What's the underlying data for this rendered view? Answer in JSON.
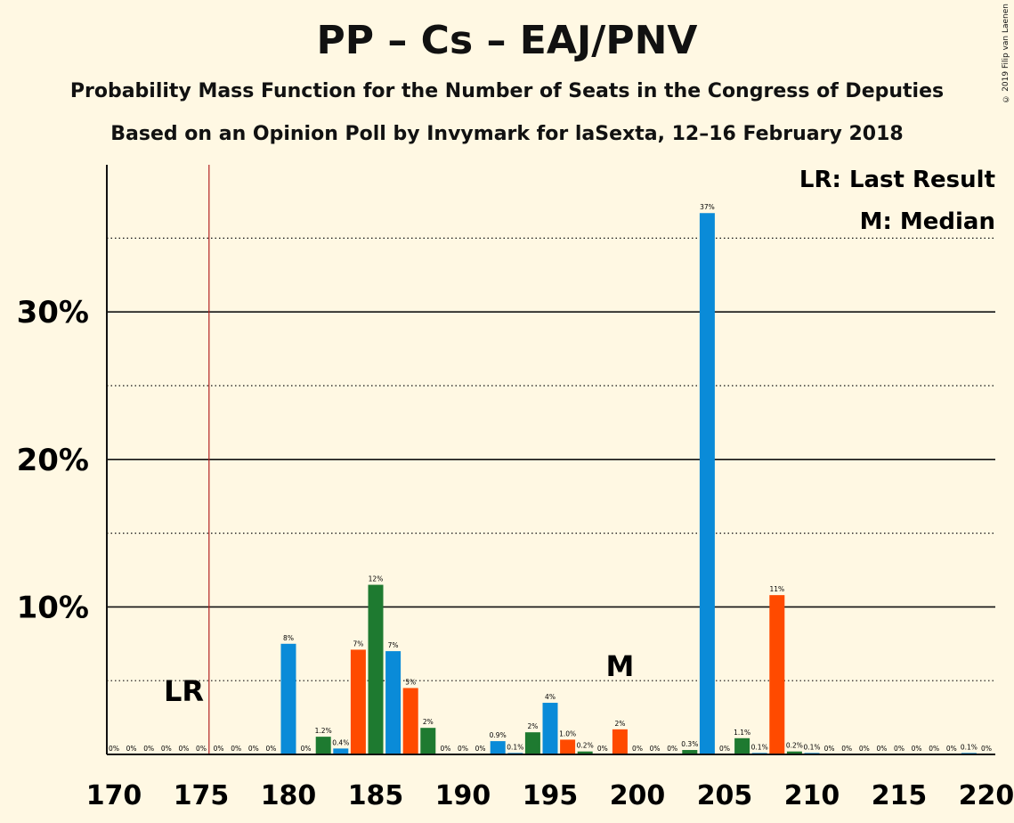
{
  "title": "PP – Cs – EAJ/PNV",
  "subtitle1": "Probability Mass Function for the Number of Seats in the Congress of Deputies",
  "subtitle2": "Based on an Opinion Poll by Invymark for laSexta, 12–16 February 2018",
  "credit": "© 2019 Filip van Laenen",
  "legend": {
    "lr": "LR: Last Result",
    "m": "M: Median"
  },
  "colors": {
    "blue": "#0A8BD8",
    "green": "#1E7A30",
    "orange": "#FF4A00",
    "lr_line": "#B22222",
    "background": "#FFF8E3"
  },
  "chart_data": {
    "type": "bar",
    "x_range": [
      170,
      220
    ],
    "ylim": [
      0,
      40
    ],
    "y_ticks": [
      10,
      20,
      30
    ],
    "y_tick_labels": [
      "10%",
      "20%",
      "30%"
    ],
    "x_ticks": [
      170,
      175,
      180,
      185,
      190,
      195,
      200,
      205,
      210,
      215,
      220
    ],
    "x_tick_labels": [
      "170",
      "175",
      "180",
      "185",
      "190",
      "195",
      "200",
      "205",
      "210",
      "215",
      "220"
    ],
    "last_result": {
      "seat": 176,
      "label": "LR"
    },
    "median": {
      "seat": 199,
      "label": "M"
    },
    "bars": [
      {
        "x": 170,
        "value": 0,
        "label": "0%",
        "color": "blue"
      },
      {
        "x": 171,
        "value": 0,
        "label": "0%",
        "color": "blue"
      },
      {
        "x": 172,
        "value": 0,
        "label": "0%",
        "color": "blue"
      },
      {
        "x": 173,
        "value": 0,
        "label": "0%",
        "color": "blue"
      },
      {
        "x": 174,
        "value": 0,
        "label": "0%",
        "color": "blue"
      },
      {
        "x": 175,
        "value": 0,
        "label": "0%",
        "color": "blue"
      },
      {
        "x": 176,
        "value": 0,
        "label": "0%",
        "color": "blue"
      },
      {
        "x": 177,
        "value": 0,
        "label": "0%",
        "color": "blue"
      },
      {
        "x": 178,
        "value": 0,
        "label": "0%",
        "color": "blue"
      },
      {
        "x": 179,
        "value": 0,
        "label": "0%",
        "color": "blue"
      },
      {
        "x": 180,
        "value": 7.5,
        "label": "8%",
        "color": "blue"
      },
      {
        "x": 181,
        "value": 0,
        "label": "0%",
        "color": "blue"
      },
      {
        "x": 182,
        "value": 1.2,
        "label": "1.2%",
        "color": "green"
      },
      {
        "x": 183,
        "value": 0.4,
        "label": "0.4%",
        "color": "blue"
      },
      {
        "x": 184,
        "value": 7.1,
        "label": "7%",
        "color": "orange"
      },
      {
        "x": 185,
        "value": 11.5,
        "label": "12%",
        "color": "green"
      },
      {
        "x": 186,
        "value": 7.0,
        "label": "7%",
        "color": "blue"
      },
      {
        "x": 187,
        "value": 4.5,
        "label": "5%",
        "color": "orange"
      },
      {
        "x": 188,
        "value": 1.8,
        "label": "2%",
        "color": "green"
      },
      {
        "x": 189,
        "value": 0,
        "label": "0%",
        "color": "blue"
      },
      {
        "x": 190,
        "value": 0,
        "label": "0%",
        "color": "blue"
      },
      {
        "x": 191,
        "value": 0,
        "label": "0%",
        "color": "blue"
      },
      {
        "x": 192,
        "value": 0.9,
        "label": "0.9%",
        "color": "blue"
      },
      {
        "x": 193,
        "value": 0.1,
        "label": "0.1%",
        "color": "blue"
      },
      {
        "x": 194,
        "value": 1.5,
        "label": "2%",
        "color": "green"
      },
      {
        "x": 195,
        "value": 3.5,
        "label": "4%",
        "color": "blue"
      },
      {
        "x": 196,
        "value": 1.0,
        "label": "1.0%",
        "color": "orange"
      },
      {
        "x": 197,
        "value": 0.2,
        "label": "0.2%",
        "color": "green"
      },
      {
        "x": 198,
        "value": 0,
        "label": "0%",
        "color": "blue"
      },
      {
        "x": 199,
        "value": 1.7,
        "label": "2%",
        "color": "orange"
      },
      {
        "x": 200,
        "value": 0,
        "label": "0%",
        "color": "blue"
      },
      {
        "x": 201,
        "value": 0,
        "label": "0%",
        "color": "blue"
      },
      {
        "x": 202,
        "value": 0,
        "label": "0%",
        "color": "blue"
      },
      {
        "x": 203,
        "value": 0.3,
        "label": "0.3%",
        "color": "green"
      },
      {
        "x": 204,
        "value": 36.7,
        "label": "37%",
        "color": "blue"
      },
      {
        "x": 205,
        "value": 0,
        "label": "0%",
        "color": "blue"
      },
      {
        "x": 206,
        "value": 1.1,
        "label": "1.1%",
        "color": "green"
      },
      {
        "x": 207,
        "value": 0.1,
        "label": "0.1%",
        "color": "blue"
      },
      {
        "x": 208,
        "value": 10.8,
        "label": "11%",
        "color": "orange"
      },
      {
        "x": 209,
        "value": 0.2,
        "label": "0.2%",
        "color": "green"
      },
      {
        "x": 210,
        "value": 0.1,
        "label": "0.1%",
        "color": "blue"
      },
      {
        "x": 211,
        "value": 0,
        "label": "0%",
        "color": "blue"
      },
      {
        "x": 212,
        "value": 0,
        "label": "0%",
        "color": "blue"
      },
      {
        "x": 213,
        "value": 0,
        "label": "0%",
        "color": "blue"
      },
      {
        "x": 214,
        "value": 0,
        "label": "0%",
        "color": "blue"
      },
      {
        "x": 215,
        "value": 0,
        "label": "0%",
        "color": "blue"
      },
      {
        "x": 216,
        "value": 0,
        "label": "0%",
        "color": "blue"
      },
      {
        "x": 217,
        "value": 0,
        "label": "0%",
        "color": "blue"
      },
      {
        "x": 218,
        "value": 0,
        "label": "0%",
        "color": "blue"
      },
      {
        "x": 219,
        "value": 0.1,
        "label": "0.1%",
        "color": "blue"
      },
      {
        "x": 220,
        "value": 0,
        "label": "0%",
        "color": "blue"
      }
    ]
  }
}
